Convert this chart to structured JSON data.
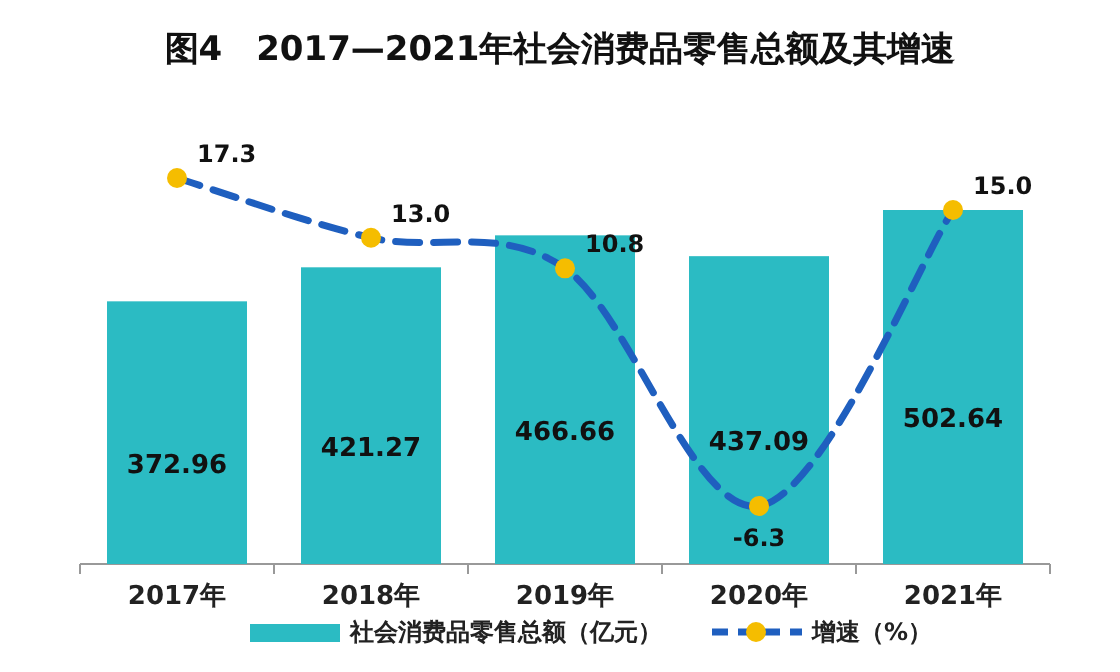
{
  "chart_data": {
    "type": "bar",
    "title": "图4　2017—2021年社会消费品零售总额及其增速",
    "categories": [
      "2017年",
      "2018年",
      "2019年",
      "2020年",
      "2021年"
    ],
    "series": [
      {
        "name": "社会消费品零售总额（亿元）",
        "color": "#2bbbc3",
        "values": [
          372.96,
          421.27,
          466.66,
          437.09,
          502.64
        ]
      },
      {
        "name": "增速（%）",
        "type": "line",
        "axis": "y2",
        "color": "#1f5fbf",
        "marker": "circle",
        "line_style": "dashed",
        "values": [
          17.3,
          13.0,
          10.8,
          -6.3,
          15.0
        ],
        "value_labels": [
          "17.3",
          "13.0",
          "10.8",
          "-6.3",
          "15.0"
        ]
      }
    ],
    "data_labels": true,
    "tick_labels": "x",
    "legend": "bottom"
  }
}
